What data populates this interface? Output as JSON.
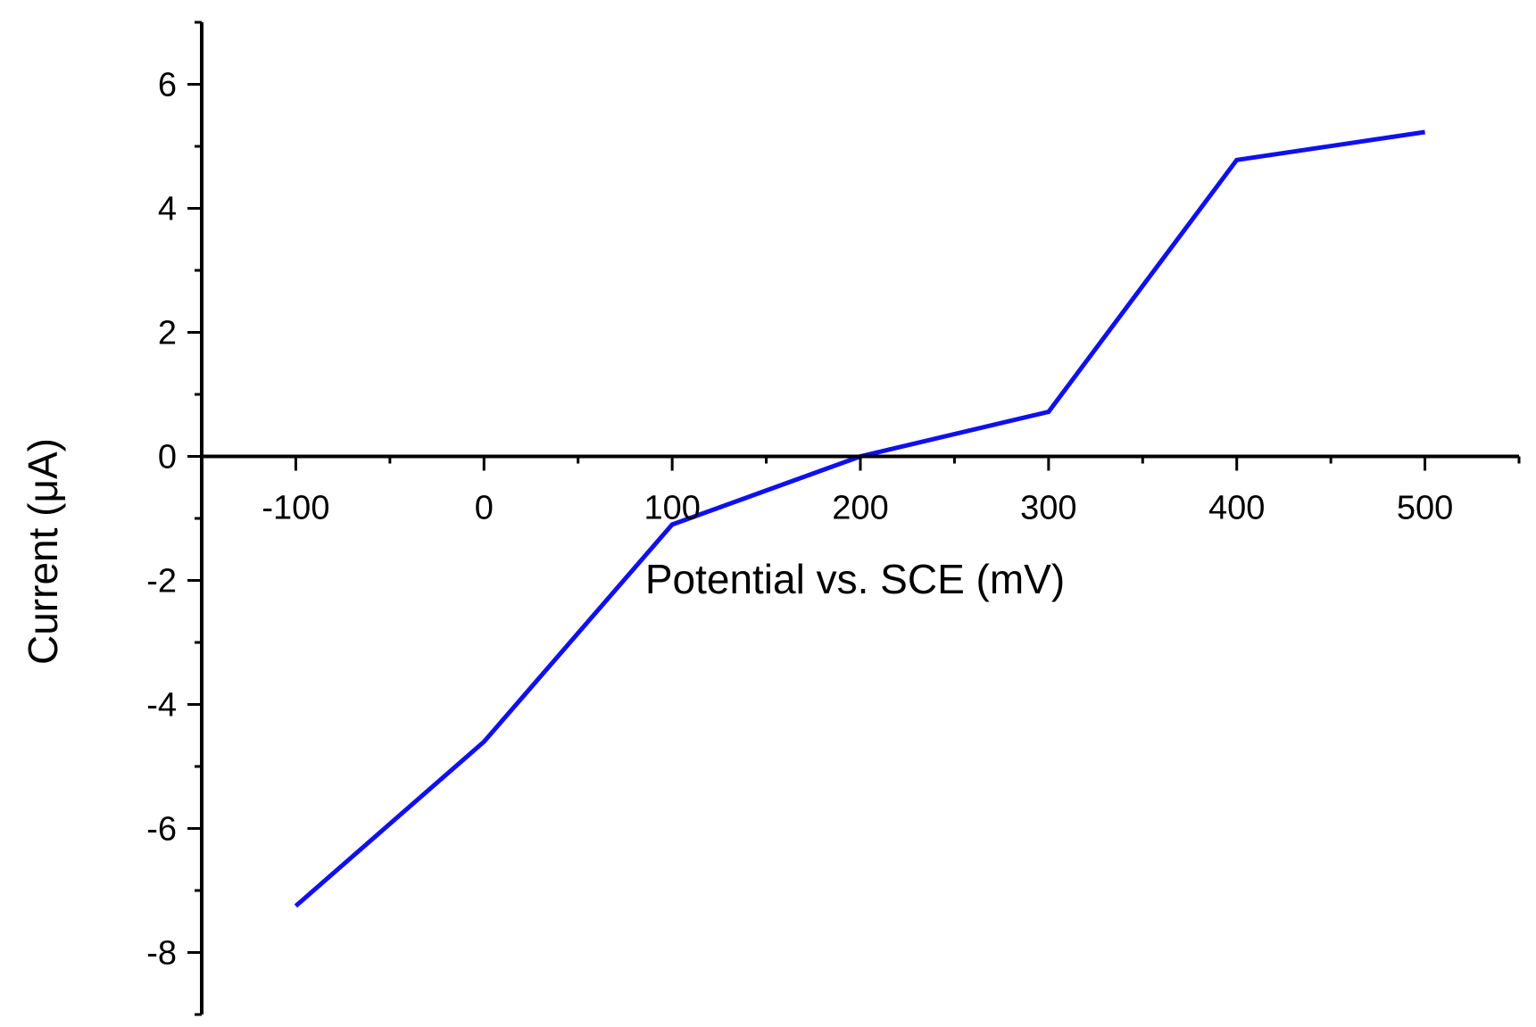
{
  "chart_data": {
    "type": "line",
    "title": "",
    "xlabel": "Potential vs. SCE (mV)",
    "ylabel": "Current (μA)",
    "xlim": [
      -150,
      550
    ],
    "ylim": [
      -9,
      7
    ],
    "x_ticks": [
      -100,
      0,
      100,
      200,
      300,
      400,
      500
    ],
    "x_minor_step": 50,
    "y_ticks": [
      -8,
      -6,
      -4,
      -2,
      0,
      2,
      4,
      6
    ],
    "y_minor_step": 1,
    "x_axis_crosses_at_y": 0,
    "grid": false,
    "legend": "none",
    "series": [
      {
        "color": "#1010ee",
        "x": [
          -100,
          0,
          100,
          200,
          300,
          400,
          500
        ],
        "y": [
          -7.25,
          -4.6,
          -1.1,
          0.0,
          0.72,
          4.78,
          5.23
        ]
      }
    ]
  }
}
